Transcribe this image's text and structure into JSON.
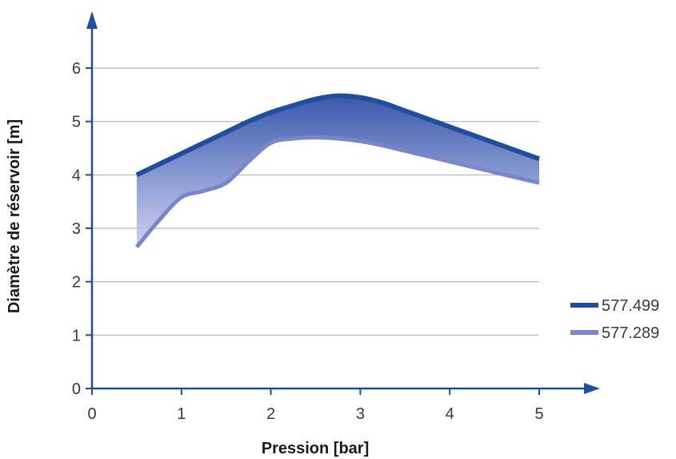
{
  "chart_data": {
    "type": "area",
    "xlabel": "Pression [bar]",
    "ylabel": "Diamètre de réservoir [m]",
    "xlim": [
      0,
      5
    ],
    "ylim": [
      0,
      6
    ],
    "xticks": [
      "0",
      "1",
      "2",
      "3",
      "4",
      "5"
    ],
    "yticks": [
      "0",
      "1",
      "2",
      "3",
      "4",
      "5",
      "6"
    ],
    "grid": "horizontal",
    "legend_position": "right",
    "series": [
      {
        "name": "577.499",
        "color": "#1f4e9e",
        "x": [
          0.5,
          0.75,
          1.0,
          1.25,
          1.5,
          1.75,
          2.0,
          2.25,
          2.5,
          2.75,
          3.0,
          3.25,
          3.5,
          3.75,
          4.0,
          4.25,
          4.5,
          4.75,
          5.0
        ],
        "y": [
          4.0,
          4.2,
          4.4,
          4.6,
          4.8,
          5.0,
          5.17,
          5.3,
          5.42,
          5.48,
          5.45,
          5.35,
          5.2,
          5.05,
          4.9,
          4.75,
          4.6,
          4.45,
          4.3
        ]
      },
      {
        "name": "577.289",
        "color": "#7b86c8",
        "x": [
          0.5,
          0.75,
          1.0,
          1.25,
          1.5,
          1.75,
          2.0,
          2.25,
          2.5,
          2.75,
          3.0,
          3.25,
          3.5,
          3.75,
          4.0,
          4.25,
          4.5,
          4.75,
          5.0
        ],
        "y": [
          2.65,
          3.15,
          3.58,
          3.7,
          3.85,
          4.25,
          4.6,
          4.68,
          4.7,
          4.68,
          4.63,
          4.55,
          4.45,
          4.35,
          4.25,
          4.15,
          4.05,
          3.95,
          3.85
        ]
      }
    ]
  },
  "colors": {
    "axis": "#1f4e9e",
    "grid": "#b5b5b5",
    "fill_top": "#2f4fa8",
    "fill_bottom": "#c9cdf0"
  }
}
